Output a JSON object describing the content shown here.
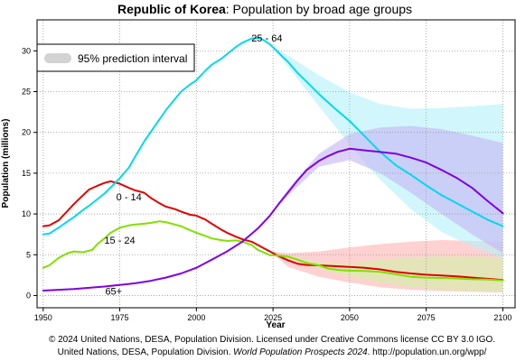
{
  "title": {
    "bold": "Republic of Korea",
    "rest": ": Population by broad age groups"
  },
  "footer": {
    "line1": "© 2024 United Nations, DESA, Population Division. Licensed under Creative Commons license CC BY 3.0 IGO.",
    "line2_part1": "United Nations, DESA, Population Division. ",
    "line2_italic": "World Population Prospects 2024",
    "line2_part2": ". http://population.un.org/wpp/"
  },
  "chart_data": {
    "type": "line",
    "title": "Republic of Korea: Population by broad age groups",
    "xlabel": "Year",
    "ylabel": "Population (millions)",
    "xlim": [
      1948,
      2104
    ],
    "ylim": [
      -1.5,
      33.8
    ],
    "xticks": [
      1950,
      1975,
      2000,
      2025,
      2050,
      2075,
      2100
    ],
    "yticks": [
      0,
      5,
      10,
      15,
      20,
      25,
      30
    ],
    "grid": true,
    "legend": {
      "placement": "top-left",
      "entries": [
        {
          "label": "95% prediction interval",
          "color": "#d3d3d3"
        }
      ]
    },
    "projection_start": 2024,
    "series": [
      {
        "name": "0 - 14",
        "color": "#e00000",
        "band_color": "#ffb2b2",
        "points": [
          [
            1950,
            8.5
          ],
          [
            1952,
            8.6
          ],
          [
            1955,
            9.2
          ],
          [
            1958,
            10.4
          ],
          [
            1960,
            11.2
          ],
          [
            1963,
            12.3
          ],
          [
            1965,
            13.0
          ],
          [
            1968,
            13.5
          ],
          [
            1970,
            13.8
          ],
          [
            1972,
            14.0
          ],
          [
            1975,
            13.7
          ],
          [
            1978,
            13.2
          ],
          [
            1980,
            12.9
          ],
          [
            1983,
            12.6
          ],
          [
            1985,
            12.0
          ],
          [
            1988,
            11.3
          ],
          [
            1990,
            10.9
          ],
          [
            1993,
            10.6
          ],
          [
            1995,
            10.3
          ],
          [
            1998,
            9.9
          ],
          [
            2000,
            9.8
          ],
          [
            2003,
            9.3
          ],
          [
            2005,
            8.8
          ],
          [
            2008,
            8.1
          ],
          [
            2010,
            7.7
          ],
          [
            2013,
            7.2
          ],
          [
            2015,
            6.9
          ],
          [
            2018,
            6.6
          ],
          [
            2020,
            6.2
          ],
          [
            2022,
            5.8
          ],
          [
            2024,
            5.4
          ],
          [
            2027,
            4.8
          ],
          [
            2030,
            4.3
          ],
          [
            2033,
            3.9
          ],
          [
            2036,
            3.75
          ],
          [
            2040,
            3.7
          ],
          [
            2045,
            3.6
          ],
          [
            2050,
            3.5
          ],
          [
            2055,
            3.4
          ],
          [
            2060,
            3.2
          ],
          [
            2065,
            2.9
          ],
          [
            2070,
            2.7
          ],
          [
            2075,
            2.55
          ],
          [
            2080,
            2.45
          ],
          [
            2085,
            2.35
          ],
          [
            2090,
            2.2
          ],
          [
            2095,
            2.05
          ],
          [
            2100,
            1.9
          ]
        ],
        "lower": [
          [
            2024,
            5.4
          ],
          [
            2030,
            3.5
          ],
          [
            2040,
            2.3
          ],
          [
            2050,
            1.6
          ],
          [
            2060,
            1.0
          ],
          [
            2070,
            0.7
          ],
          [
            2080,
            0.55
          ],
          [
            2090,
            0.45
          ],
          [
            2100,
            0.35
          ]
        ],
        "upper": [
          [
            2024,
            5.4
          ],
          [
            2030,
            5.2
          ],
          [
            2040,
            5.4
          ],
          [
            2050,
            5.9
          ],
          [
            2060,
            6.3
          ],
          [
            2070,
            6.6
          ],
          [
            2080,
            6.8
          ],
          [
            2090,
            6.7
          ],
          [
            2100,
            6.6
          ]
        ]
      },
      {
        "name": "15 - 24",
        "color": "#80e000",
        "band_color": "#d2f0a8",
        "points": [
          [
            1950,
            3.4
          ],
          [
            1952,
            3.7
          ],
          [
            1955,
            4.6
          ],
          [
            1958,
            5.2
          ],
          [
            1960,
            5.4
          ],
          [
            1963,
            5.3
          ],
          [
            1966,
            5.6
          ],
          [
            1968,
            6.4
          ],
          [
            1970,
            7.0
          ],
          [
            1972,
            7.7
          ],
          [
            1975,
            8.3
          ],
          [
            1978,
            8.6
          ],
          [
            1980,
            8.7
          ],
          [
            1983,
            8.8
          ],
          [
            1985,
            8.9
          ],
          [
            1988,
            9.1
          ],
          [
            1990,
            9.0
          ],
          [
            1993,
            8.7
          ],
          [
            1995,
            8.5
          ],
          [
            1998,
            8.0
          ],
          [
            2000,
            7.7
          ],
          [
            2003,
            7.3
          ],
          [
            2005,
            7.0
          ],
          [
            2008,
            6.8
          ],
          [
            2010,
            6.7
          ],
          [
            2013,
            6.75
          ],
          [
            2015,
            6.6
          ],
          [
            2018,
            6.2
          ],
          [
            2020,
            5.6
          ],
          [
            2024,
            4.95
          ],
          [
            2027,
            4.9
          ],
          [
            2030,
            4.75
          ],
          [
            2033,
            4.4
          ],
          [
            2036,
            4.0
          ],
          [
            2040,
            3.7
          ],
          [
            2043,
            3.3
          ],
          [
            2047,
            3.1
          ],
          [
            2050,
            3.05
          ],
          [
            2055,
            3.0
          ],
          [
            2060,
            2.9
          ],
          [
            2065,
            2.6
          ],
          [
            2070,
            2.3
          ],
          [
            2075,
            2.2
          ],
          [
            2080,
            2.15
          ],
          [
            2085,
            2.1
          ],
          [
            2090,
            2.0
          ],
          [
            2095,
            1.95
          ],
          [
            2100,
            1.85
          ]
        ],
        "lower": [
          [
            2024,
            4.95
          ],
          [
            2030,
            4.6
          ],
          [
            2040,
            3.3
          ],
          [
            2050,
            2.3
          ],
          [
            2060,
            1.6
          ],
          [
            2070,
            1.0
          ],
          [
            2080,
            0.7
          ],
          [
            2090,
            0.55
          ],
          [
            2100,
            0.45
          ]
        ],
        "upper": [
          [
            2024,
            4.95
          ],
          [
            2030,
            4.9
          ],
          [
            2040,
            4.1
          ],
          [
            2050,
            4.0
          ],
          [
            2060,
            4.4
          ],
          [
            2070,
            4.7
          ],
          [
            2080,
            4.8
          ],
          [
            2090,
            4.8
          ],
          [
            2100,
            4.7
          ]
        ]
      },
      {
        "name": "25 - 64",
        "color": "#00d8f0",
        "band_color": "#b2f2fa",
        "points": [
          [
            1950,
            7.5
          ],
          [
            1952,
            7.6
          ],
          [
            1955,
            8.3
          ],
          [
            1958,
            9.1
          ],
          [
            1960,
            9.6
          ],
          [
            1963,
            10.5
          ],
          [
            1965,
            11.0
          ],
          [
            1968,
            11.9
          ],
          [
            1970,
            12.5
          ],
          [
            1973,
            13.6
          ],
          [
            1975,
            14.4
          ],
          [
            1978,
            15.7
          ],
          [
            1980,
            17.0
          ],
          [
            1983,
            18.9
          ],
          [
            1985,
            20.0
          ],
          [
            1988,
            21.6
          ],
          [
            1990,
            22.7
          ],
          [
            1993,
            24.1
          ],
          [
            1995,
            25.0
          ],
          [
            1998,
            25.9
          ],
          [
            2000,
            26.4
          ],
          [
            2003,
            27.6
          ],
          [
            2005,
            28.3
          ],
          [
            2008,
            29.0
          ],
          [
            2010,
            29.6
          ],
          [
            2013,
            30.5
          ],
          [
            2015,
            31.0
          ],
          [
            2018,
            31.5
          ],
          [
            2020,
            31.6
          ],
          [
            2022,
            31.3
          ],
          [
            2024,
            30.8
          ],
          [
            2027,
            29.7
          ],
          [
            2030,
            28.6
          ],
          [
            2033,
            27.3
          ],
          [
            2036,
            26.2
          ],
          [
            2040,
            24.7
          ],
          [
            2045,
            23.0
          ],
          [
            2050,
            21.4
          ],
          [
            2055,
            19.5
          ],
          [
            2060,
            17.6
          ],
          [
            2065,
            16.0
          ],
          [
            2070,
            14.8
          ],
          [
            2075,
            13.5
          ],
          [
            2080,
            12.3
          ],
          [
            2085,
            11.3
          ],
          [
            2090,
            10.3
          ],
          [
            2095,
            9.3
          ],
          [
            2100,
            8.5
          ]
        ],
        "lower": [
          [
            2024,
            30.8
          ],
          [
            2030,
            28.0
          ],
          [
            2040,
            23.2
          ],
          [
            2050,
            18.5
          ],
          [
            2055,
            16.3
          ],
          [
            2060,
            14.2
          ],
          [
            2070,
            10.6
          ],
          [
            2080,
            7.8
          ],
          [
            2090,
            6.0
          ],
          [
            2100,
            4.6
          ]
        ],
        "upper": [
          [
            2024,
            30.8
          ],
          [
            2030,
            29.4
          ],
          [
            2040,
            27.0
          ],
          [
            2050,
            24.9
          ],
          [
            2060,
            23.5
          ],
          [
            2070,
            22.9
          ],
          [
            2080,
            23.0
          ],
          [
            2090,
            23.2
          ],
          [
            2100,
            23.5
          ]
        ]
      },
      {
        "name": "65+",
        "color": "#8000e0",
        "band_color": "#c4b4f4",
        "points": [
          [
            1950,
            0.6
          ],
          [
            1955,
            0.7
          ],
          [
            1960,
            0.8
          ],
          [
            1965,
            0.95
          ],
          [
            1970,
            1.1
          ],
          [
            1975,
            1.3
          ],
          [
            1980,
            1.5
          ],
          [
            1985,
            1.8
          ],
          [
            1990,
            2.2
          ],
          [
            1995,
            2.7
          ],
          [
            2000,
            3.4
          ],
          [
            2005,
            4.4
          ],
          [
            2010,
            5.4
          ],
          [
            2015,
            6.6
          ],
          [
            2020,
            8.2
          ],
          [
            2024,
            9.8
          ],
          [
            2027,
            11.3
          ],
          [
            2030,
            12.7
          ],
          [
            2033,
            14.1
          ],
          [
            2036,
            15.4
          ],
          [
            2040,
            16.5
          ],
          [
            2043,
            17.1
          ],
          [
            2046,
            17.6
          ],
          [
            2050,
            18.0
          ],
          [
            2055,
            17.8
          ],
          [
            2060,
            17.6
          ],
          [
            2065,
            17.4
          ],
          [
            2070,
            16.9
          ],
          [
            2075,
            16.3
          ],
          [
            2080,
            15.4
          ],
          [
            2085,
            14.4
          ],
          [
            2090,
            13.2
          ],
          [
            2095,
            11.6
          ],
          [
            2100,
            10.1
          ]
        ],
        "lower": [
          [
            2024,
            9.8
          ],
          [
            2030,
            12.3
          ],
          [
            2040,
            15.8
          ],
          [
            2050,
            16.6
          ],
          [
            2060,
            15.0
          ],
          [
            2070,
            12.6
          ],
          [
            2080,
            10.0
          ],
          [
            2090,
            7.5
          ],
          [
            2100,
            5.2
          ]
        ],
        "upper": [
          [
            2024,
            9.8
          ],
          [
            2030,
            13.1
          ],
          [
            2040,
            17.4
          ],
          [
            2050,
            19.8
          ],
          [
            2060,
            20.6
          ],
          [
            2070,
            20.8
          ],
          [
            2080,
            20.4
          ],
          [
            2090,
            19.6
          ],
          [
            2100,
            18.7
          ]
        ]
      }
    ],
    "annotations": [
      {
        "text": "25 - 64",
        "x": 2023,
        "y": 31.6
      },
      {
        "text": "0 - 14",
        "x": 1978,
        "y": 12.1
      },
      {
        "text": "15 - 24",
        "x": 1975,
        "y": 6.8
      },
      {
        "text": "65+",
        "x": 1973,
        "y": 0.55
      }
    ]
  }
}
